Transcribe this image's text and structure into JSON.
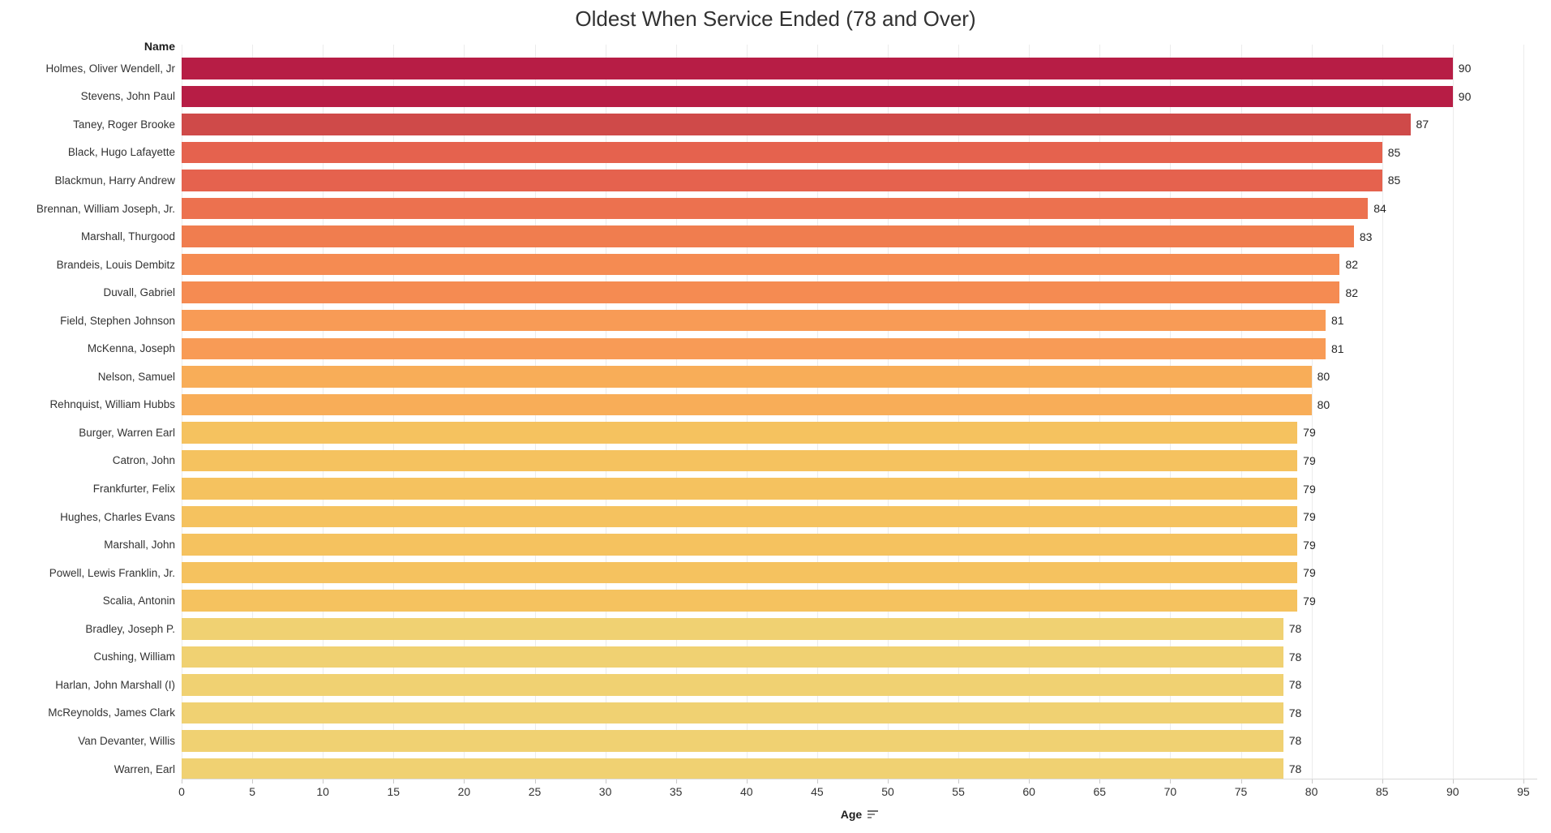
{
  "title": "Oldest When Service Ended (78 and Over)",
  "row_header": "Name",
  "axis": {
    "label": "Age",
    "ticks": [
      0,
      5,
      10,
      15,
      20,
      25,
      30,
      35,
      40,
      45,
      50,
      55,
      60,
      65,
      70,
      75,
      80,
      85,
      90,
      95
    ],
    "min": 0,
    "max": 95
  },
  "colors": {
    "background": "#ffffff",
    "gridline": "#ececec",
    "axis_line": "#d9d9d9",
    "text": "#333333",
    "by_value": {
      "90": "#b71d45",
      "87": "#cf4a49",
      "85": "#e5624e",
      "84": "#ec714f",
      "83": "#f07d4f",
      "82": "#f58b52",
      "81": "#f89b56",
      "80": "#f8ad58",
      "79": "#f5c25f",
      "78": "#f0d172"
    }
  },
  "chart_data": {
    "type": "bar",
    "orientation": "horizontal",
    "title": "Oldest When Service Ended (78 and Over)",
    "xlabel": "Age",
    "ylabel": "Name",
    "xlim": [
      0,
      95
    ],
    "grid": true,
    "value_labels": true,
    "sort": "descending",
    "categories": [
      "Holmes, Oliver Wendell, Jr",
      "Stevens, John Paul",
      "Taney, Roger Brooke",
      "Black, Hugo Lafayette",
      "Blackmun, Harry Andrew",
      "Brennan, William Joseph, Jr.",
      "Marshall, Thurgood",
      "Brandeis, Louis Dembitz",
      "Duvall, Gabriel",
      "Field, Stephen Johnson",
      "McKenna, Joseph",
      "Nelson, Samuel",
      "Rehnquist, William Hubbs",
      "Burger, Warren Earl",
      "Catron, John",
      "Frankfurter, Felix",
      "Hughes, Charles Evans",
      "Marshall, John",
      "Powell, Lewis Franklin, Jr.",
      "Scalia, Antonin",
      "Bradley, Joseph P.",
      "Cushing, William",
      "Harlan, John Marshall (I)",
      "McReynolds, James Clark",
      "Van Devanter, Willis",
      "Warren, Earl"
    ],
    "values": [
      90,
      90,
      87,
      85,
      85,
      84,
      83,
      82,
      82,
      81,
      81,
      80,
      80,
      79,
      79,
      79,
      79,
      79,
      79,
      79,
      78,
      78,
      78,
      78,
      78,
      78
    ]
  }
}
